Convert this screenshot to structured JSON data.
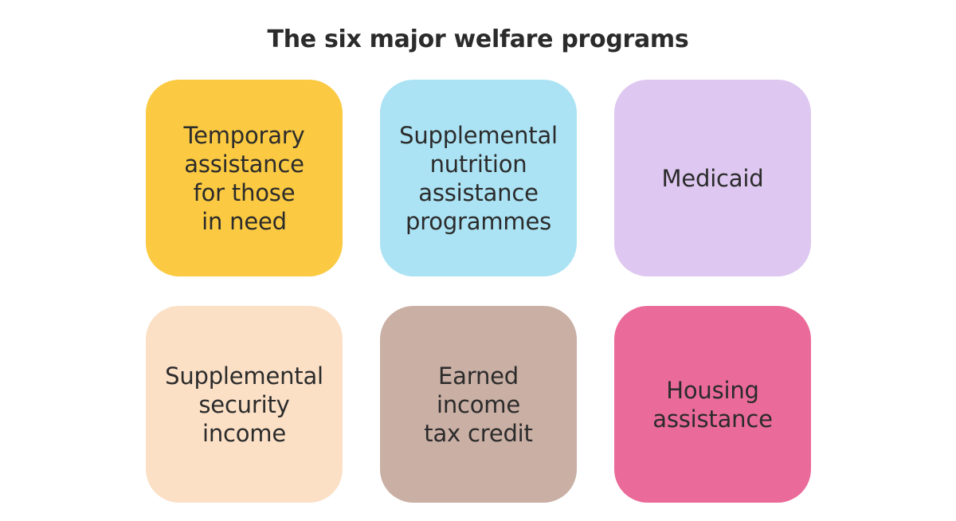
{
  "title": "The six major welfare programs",
  "programs": [
    {
      "label": "Temporary\nassistance\nfor those\nin need",
      "color": "#fbca42"
    },
    {
      "label": "Supplemental\nnutrition\nassistance\nprogrammes",
      "color": "#abe3f4"
    },
    {
      "label": "Medicaid",
      "color": "#dec7f0"
    },
    {
      "label": "Supplemental\nsecurity\nincome",
      "color": "#fbe0c6"
    },
    {
      "label": "Earned\nincome\ntax credit",
      "color": "#c9afa4"
    },
    {
      "label": "Housing\nassistance",
      "color": "#ea6b99"
    }
  ]
}
